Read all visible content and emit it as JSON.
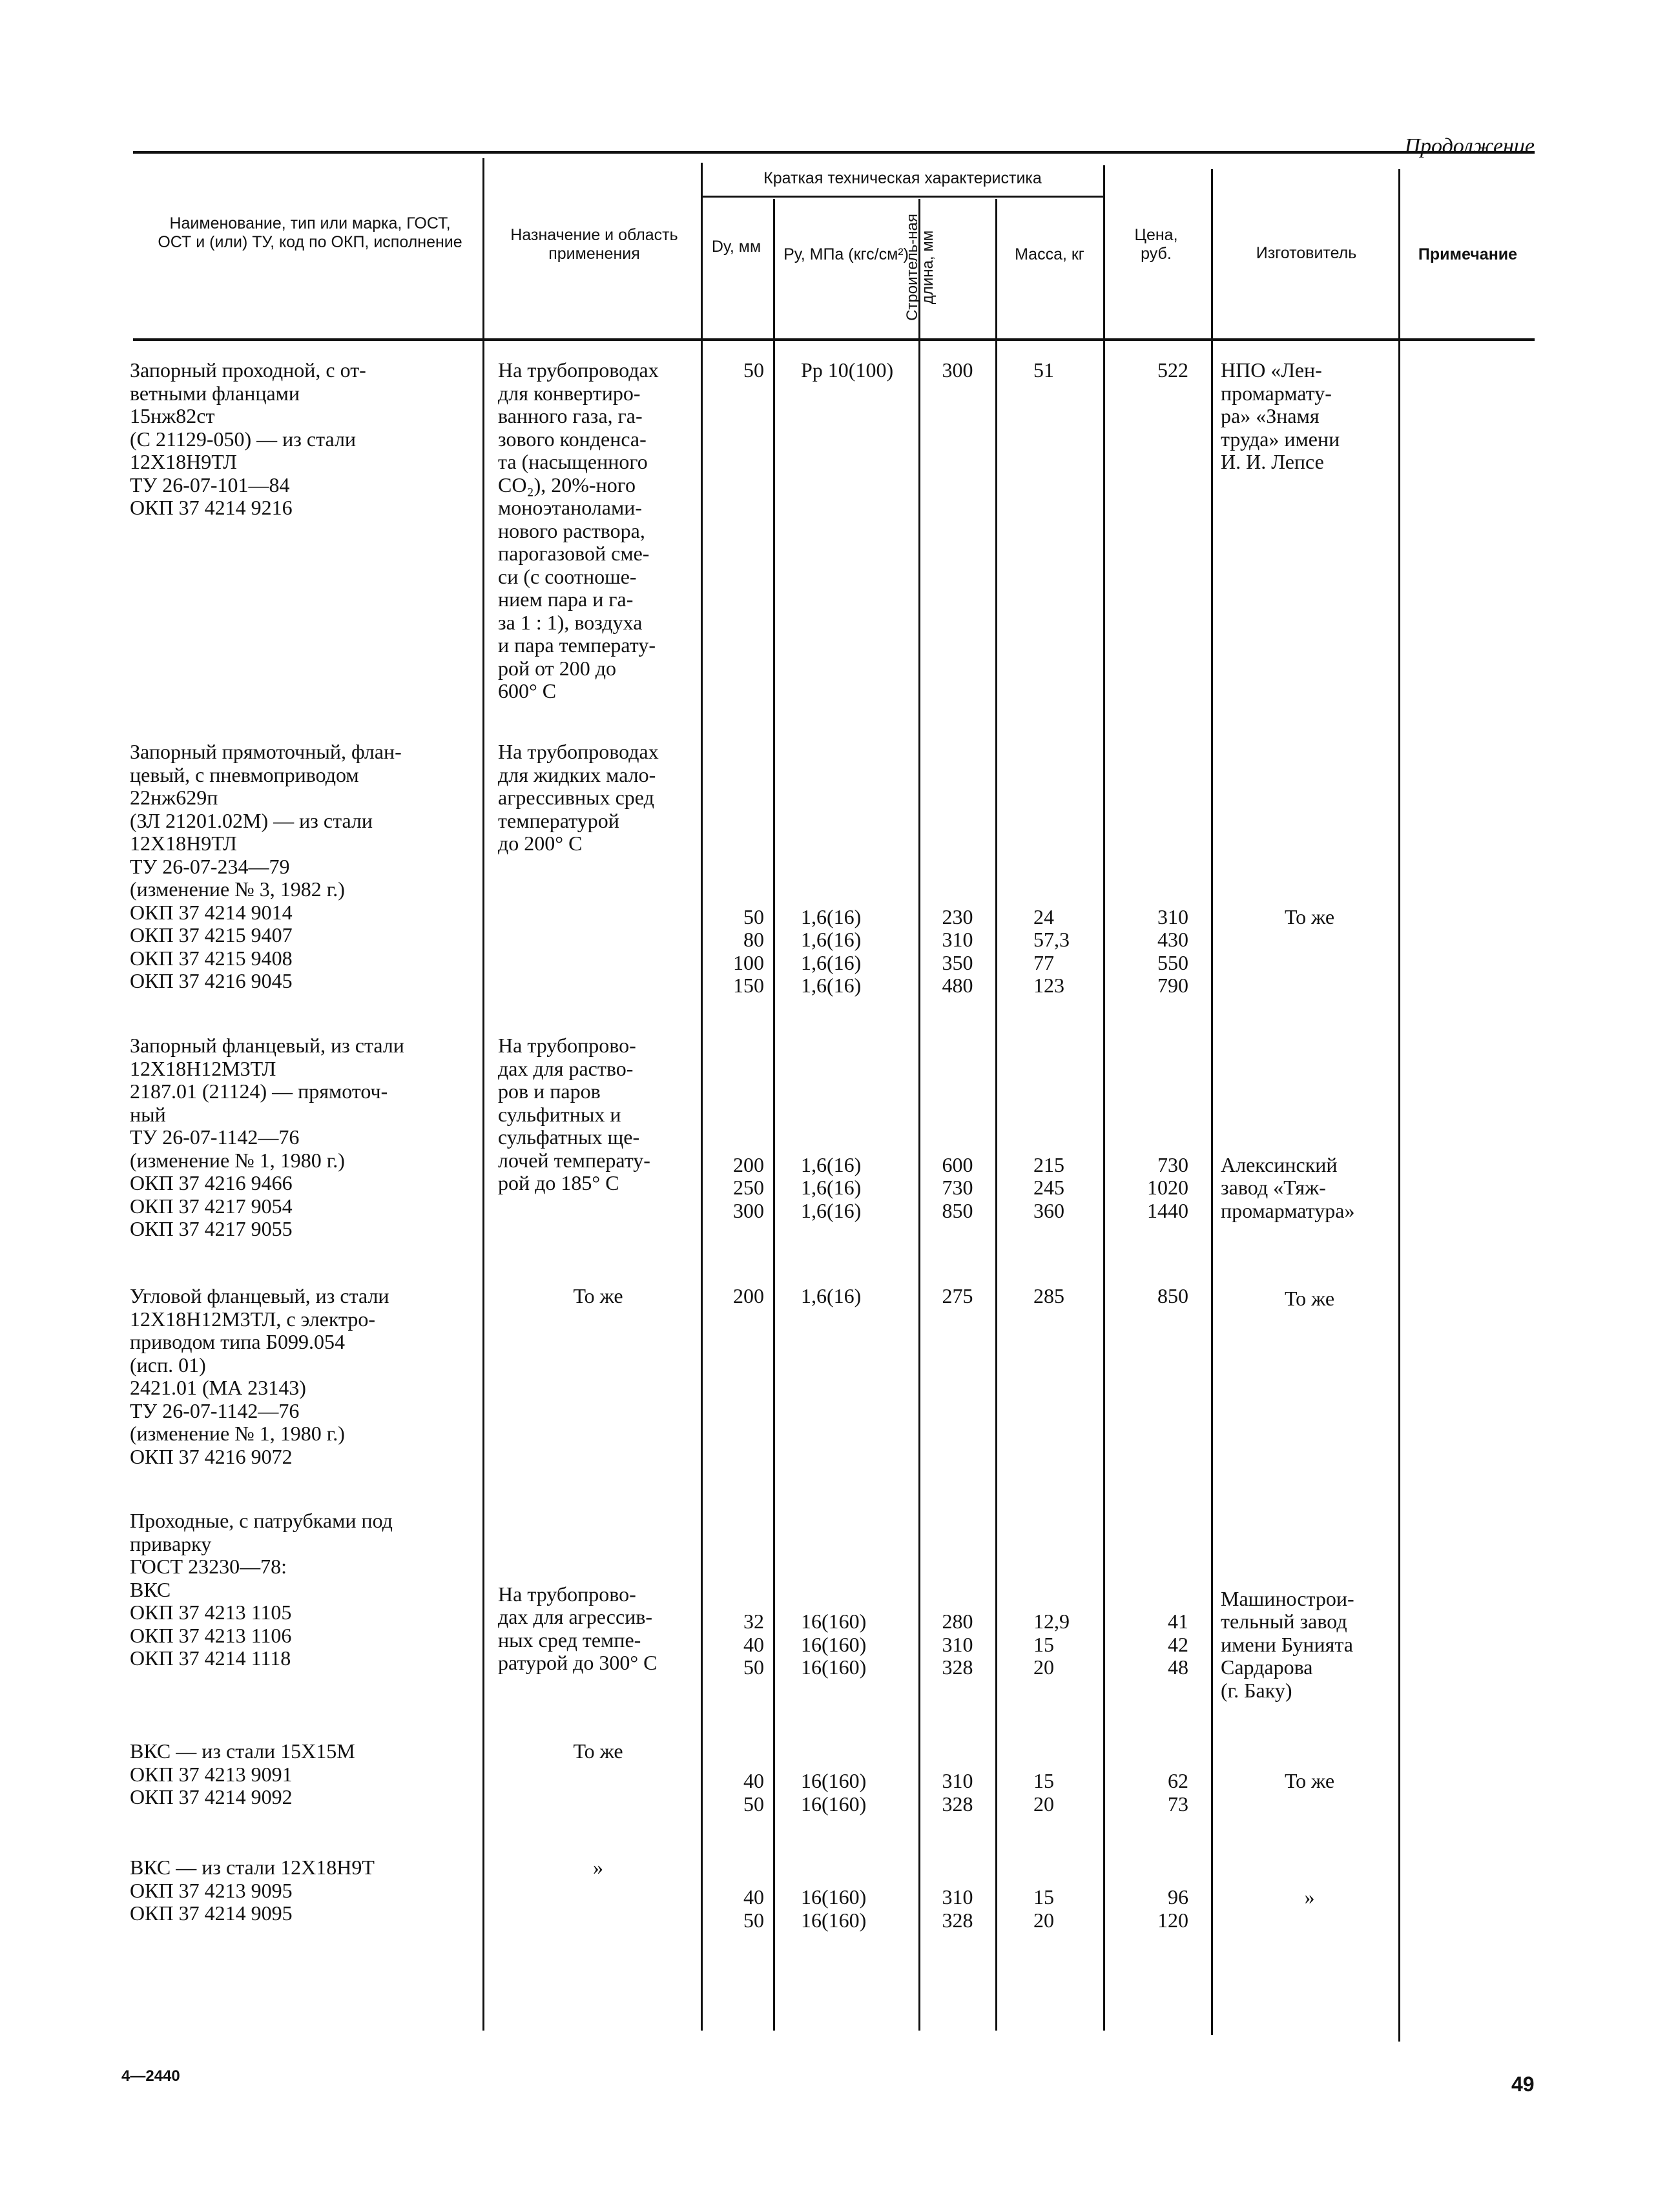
{
  "continuation": "Продолжение",
  "header": {
    "name": "Наименование, тип или марка, ГОСТ, ОСТ и (или) ТУ, код по ОКП, исполнение",
    "purpose": "Назначение и область применения",
    "tech_group": "Краткая техническая характеристика",
    "dy": "Dу, мм",
    "py": "Pу, МПа (кгс/см²)",
    "length": "Строитель-ная длина, мм",
    "mass": "Масса, кг",
    "price": "Цена, руб.",
    "maker": "Изготовитель",
    "note": "Примечание"
  },
  "rows": [
    {
      "name": [
        "Запорный проходной, с от-",
        "ветными фланцами",
        "15нж82ст",
        "(С 21129-050) — из стали",
        "12Х18Н9ТЛ",
        "ТУ 26-07-101—84",
        "ОКП 37 4214 9216"
      ],
      "purpose": [
        "На трубопроводах",
        "для конвертиро-",
        "ванного газа, га-",
        "зового конденса-",
        "та (насыщенного",
        "CO₂), 20%-ного",
        "моноэтанолами-",
        "нового раствора,",
        "парогазовой сме-",
        "си (с соотноше-",
        "нием пара и га-",
        "за 1 : 1), воздуха",
        "и пара температу-",
        "рой от 200 до",
        "600° С"
      ],
      "dy": [
        "50"
      ],
      "py": [
        "Pр 10(100)"
      ],
      "length": [
        "300"
      ],
      "mass": [
        "51"
      ],
      "price": [
        "522"
      ],
      "maker": [
        "НПО «Лен-",
        "промармату-",
        "ра» «Знамя",
        "труда» имени",
        "И. И. Лепсе"
      ]
    },
    {
      "name": [
        "Запорный прямоточный, флан-",
        "цевый, с пневмоприводом",
        "22нж629п",
        "(ЗЛ 21201.02М) — из стали",
        "12Х18Н9ТЛ",
        "ТУ 26-07-234—79",
        "(изменение № 3, 1982 г.)",
        "ОКП 37 4214 9014",
        "ОКП 37 4215 9407",
        "ОКП 37 4215 9408",
        "ОКП 37 4216 9045"
      ],
      "purpose": [
        "На трубопроводах",
        "для жидких мало-",
        "агрессивных сред",
        "температурой",
        "до 200° С"
      ],
      "dy": [
        "50",
        "80",
        "100",
        "150"
      ],
      "py": [
        "1,6(16)",
        "1,6(16)",
        "1,6(16)",
        "1,6(16)"
      ],
      "length": [
        "230",
        "310",
        "350",
        "480"
      ],
      "mass": [
        "24",
        "57,3",
        "77",
        "123"
      ],
      "price": [
        "310",
        "430",
        "550",
        "790"
      ],
      "maker": [
        "То же"
      ]
    },
    {
      "name": [
        "Запорный фланцевый, из стали",
        "12Х18Н12М3ТЛ",
        "2187.01 (21124) — прямоточ-",
        "ный",
        "ТУ 26-07-1142—76",
        "(изменение № 1, 1980 г.)",
        "ОКП 37 4216 9466",
        "ОКП 37 4217 9054",
        "ОКП 37 4217 9055"
      ],
      "purpose": [
        "На трубопрово-",
        "дах для раство-",
        "ров и паров",
        "сульфитных и",
        "сульфатных ще-",
        "лочей температу-",
        "рой до 185° С"
      ],
      "dy": [
        "200",
        "250",
        "300"
      ],
      "py": [
        "1,6(16)",
        "1,6(16)",
        "1,6(16)"
      ],
      "length": [
        "600",
        "730",
        "850"
      ],
      "mass": [
        "215",
        "245",
        "360"
      ],
      "price": [
        "730",
        "1020",
        "1440"
      ],
      "maker": [
        "Алексинский",
        "завод «Тяж-",
        "промарматура»"
      ]
    },
    {
      "name": [
        "Угловой фланцевый, из стали",
        "12Х18Н12М3ТЛ, с электро-",
        "приводом типа Б099.054",
        "(исп. 01)",
        "2421.01 (МА 23143)",
        "ТУ 26-07-1142—76",
        "(изменение № 1, 1980 г.)",
        "ОКП 37 4216 9072"
      ],
      "purpose": [
        "То же"
      ],
      "dy": [
        "200"
      ],
      "py": [
        "1,6(16)"
      ],
      "length": [
        "275"
      ],
      "mass": [
        "285"
      ],
      "price": [
        "850"
      ],
      "maker": [
        "То же"
      ]
    },
    {
      "name": [
        "Проходные, с патрубками под",
        "приварку",
        "ГОСТ 23230—78:",
        "ВКС",
        "ОКП 37 4213 1105",
        "ОКП 37 4213 1106",
        "ОКП 37 4214 1118"
      ],
      "purpose": [
        "На трубопрово-",
        "дах для агрессив-",
        "ных сред темпе-",
        "ратурой до 300° С"
      ],
      "dy": [
        "32",
        "40",
        "50"
      ],
      "py": [
        "16(160)",
        "16(160)",
        "16(160)"
      ],
      "length": [
        "280",
        "310",
        "328"
      ],
      "mass": [
        "12,9",
        "15",
        "20"
      ],
      "price": [
        "41",
        "42",
        "48"
      ],
      "maker": [
        "Машинострои-",
        "тельный завод",
        "имени Бунията",
        "Сардарова",
        "(г. Баку)"
      ]
    },
    {
      "name": [
        "ВКС — из стали 15Х15М",
        "ОКП 37 4213 9091",
        "ОКП 37 4214 9092"
      ],
      "purpose": [
        "То  же"
      ],
      "dy": [
        "40",
        "50"
      ],
      "py": [
        "16(160)",
        "16(160)"
      ],
      "length": [
        "310",
        "328"
      ],
      "mass": [
        "15",
        "20"
      ],
      "price": [
        "62",
        "73"
      ],
      "maker": [
        "То же"
      ]
    },
    {
      "name": [
        "ВКС — из стали 12Х18Н9Т",
        "ОКП 37 4213 9095",
        "ОКП 37 4214 9095"
      ],
      "purpose": [
        "»"
      ],
      "dy": [
        "40",
        "50"
      ],
      "py": [
        "16(160)",
        "16(160)"
      ],
      "length": [
        "310",
        "328"
      ],
      "mass": [
        "15",
        "20"
      ],
      "price": [
        "96",
        "120"
      ],
      "maker": [
        "»"
      ]
    }
  ],
  "footer": {
    "code": "4—2440",
    "page": "49"
  }
}
